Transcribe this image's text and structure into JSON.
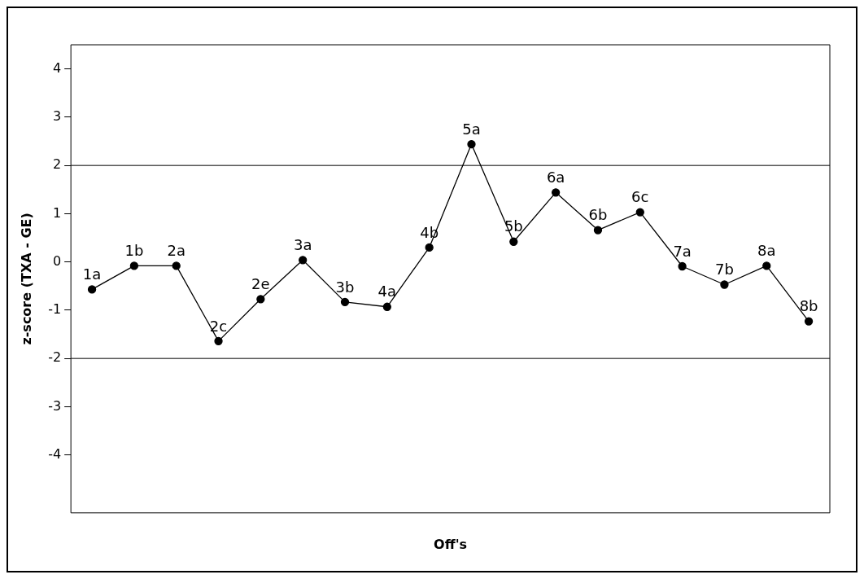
{
  "chart_data": {
    "type": "line",
    "xlabel": "Off's",
    "ylabel": "z-score (TXA - GE)",
    "categories": [
      "1a",
      "1b",
      "2a",
      "2c",
      "2e",
      "3a",
      "3b",
      "4a",
      "4b",
      "5a",
      "5b",
      "6a",
      "6b",
      "6c",
      "7a",
      "7b",
      "8a",
      "8b"
    ],
    "series": [
      {
        "color": "#000000",
        "values": [
          -0.57,
          -0.08,
          -0.08,
          -1.64,
          -0.77,
          0.04,
          -0.83,
          -0.93,
          0.3,
          2.44,
          0.42,
          1.44,
          0.66,
          1.03,
          -0.09,
          -0.47,
          -0.08,
          -1.23
        ]
      }
    ],
    "ylim": [
      -5.2,
      4.5
    ],
    "yticks": [
      -4,
      -3,
      -2,
      -1,
      0,
      1,
      2,
      3,
      4
    ],
    "ref_lines": [
      {
        "axis": "y",
        "value": 2,
        "color": "#555555"
      },
      {
        "axis": "y",
        "value": -2,
        "color": "#555555"
      }
    ],
    "marker": "circle",
    "line_style": "solid",
    "grid": false,
    "legend": false,
    "tick_labels": "y"
  }
}
